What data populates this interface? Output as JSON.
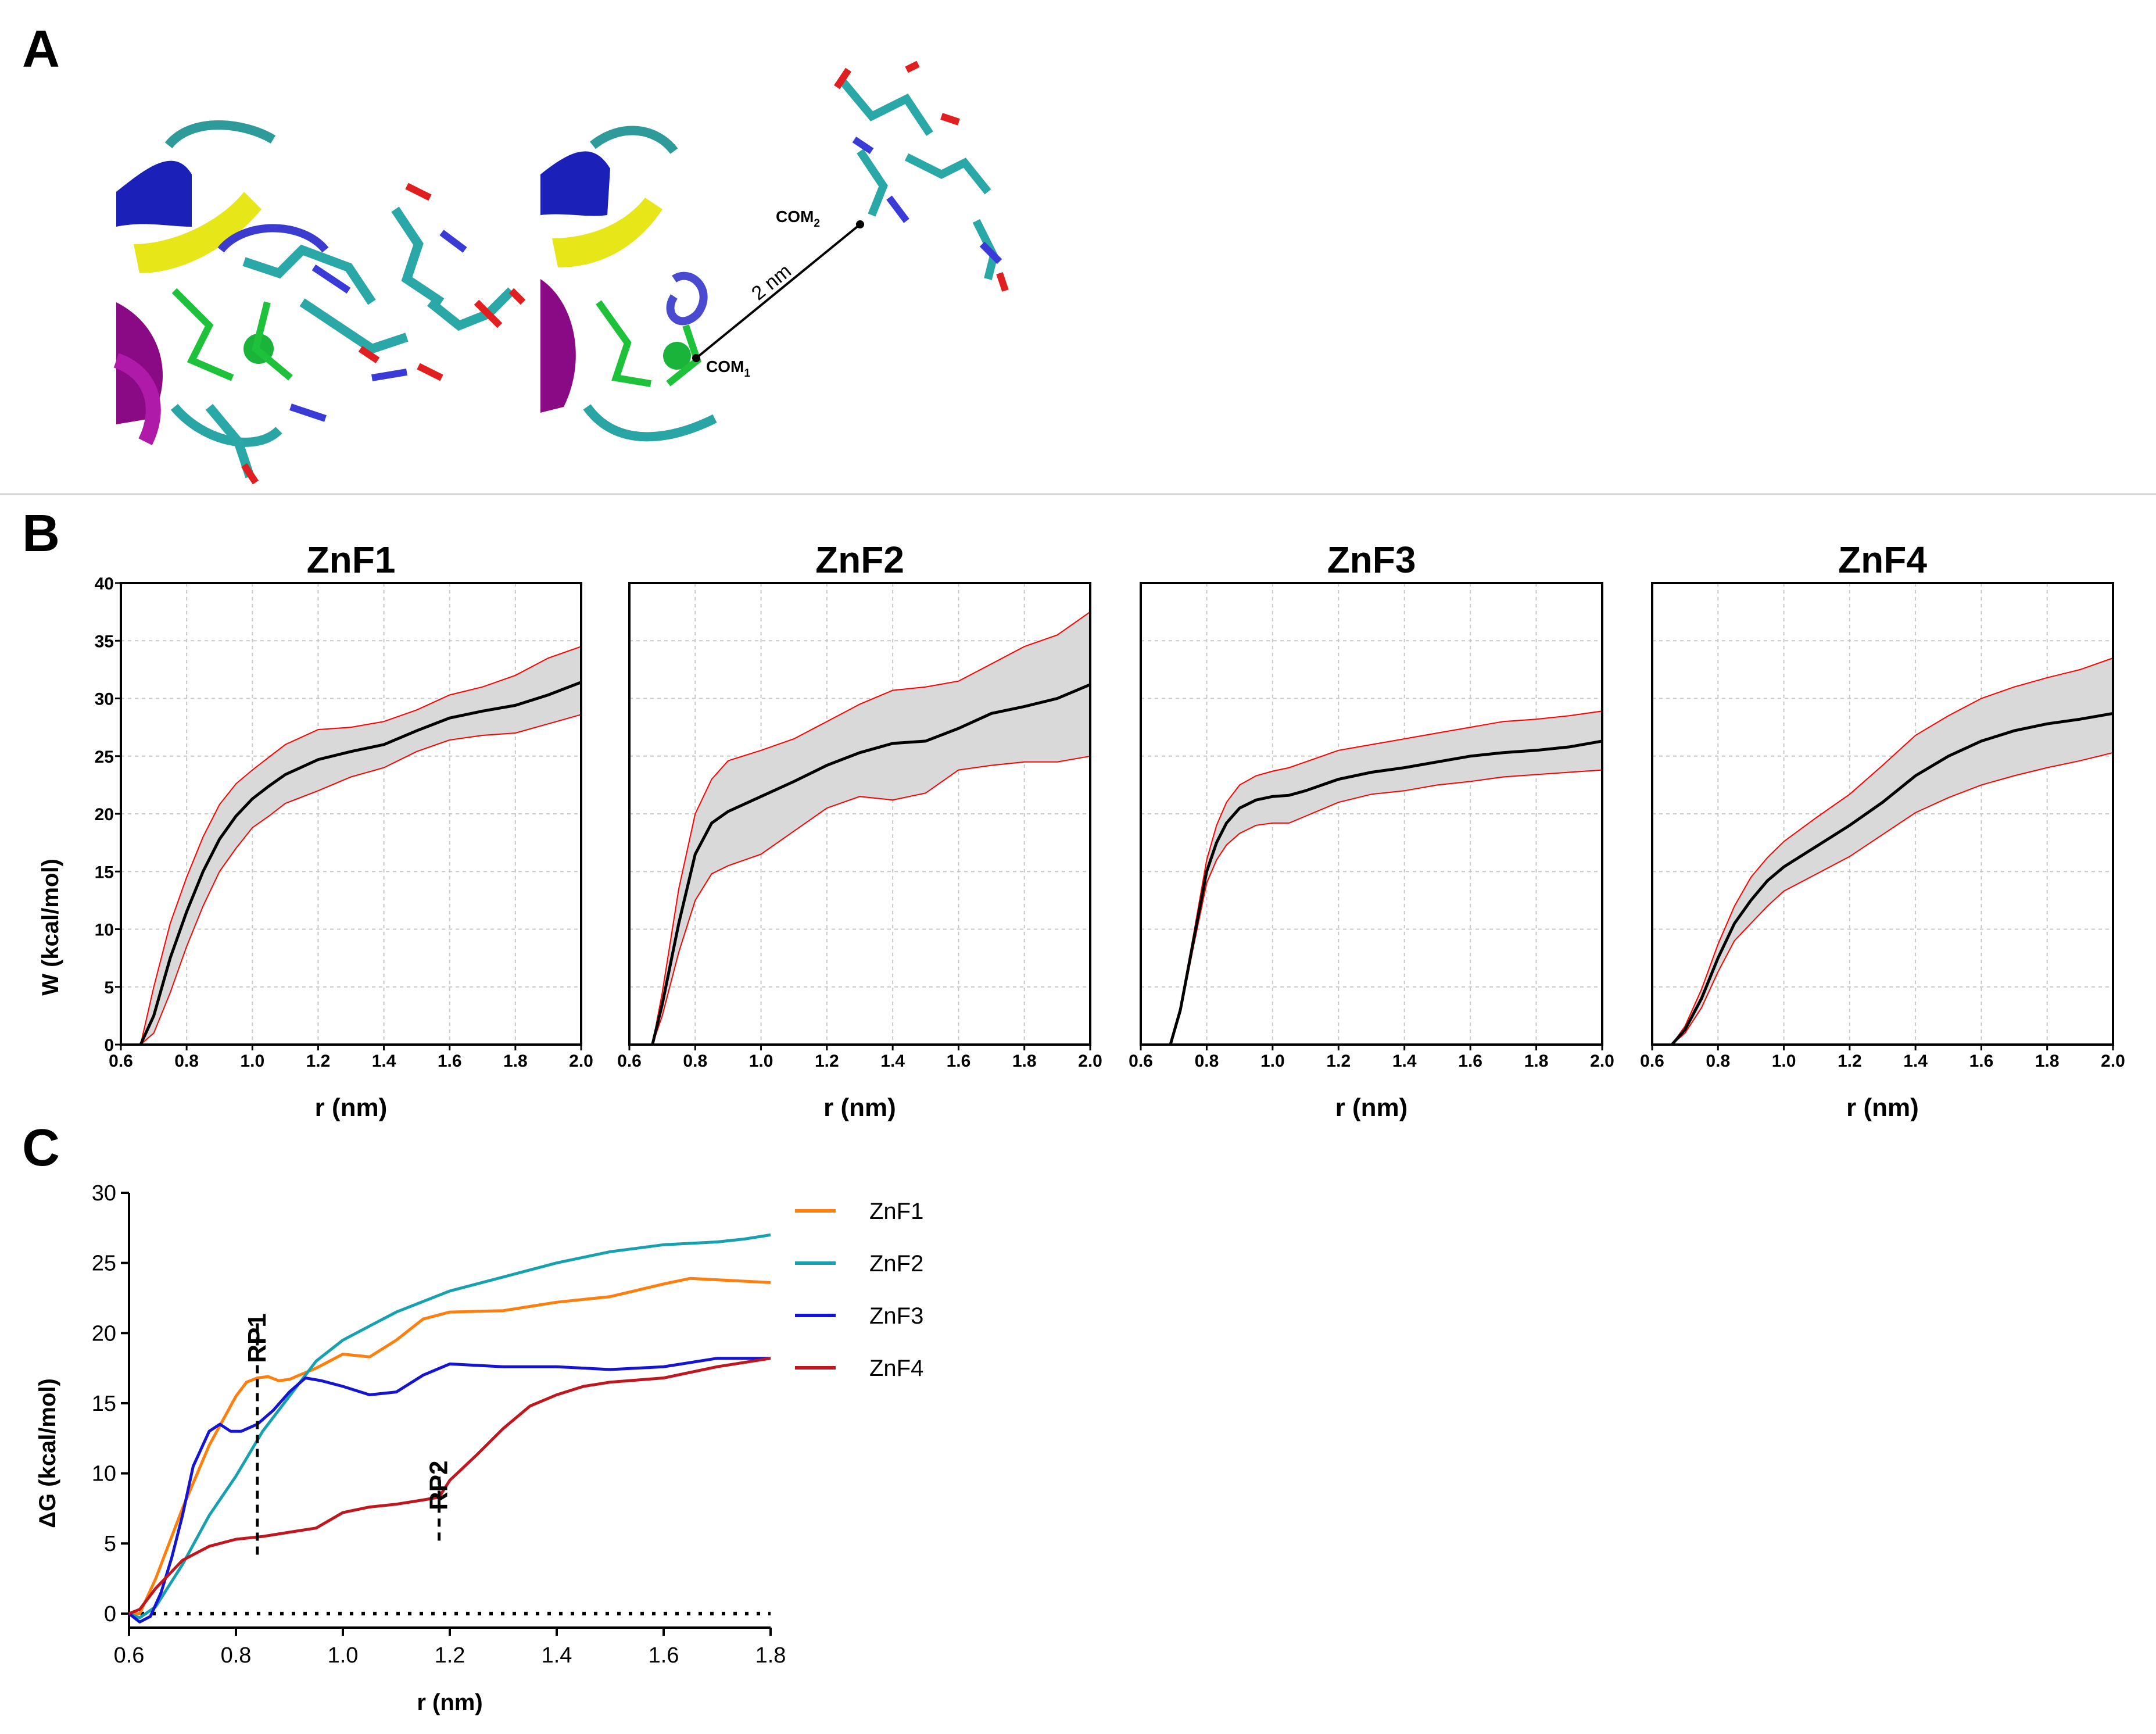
{
  "panels": {
    "a": {
      "letter": "A",
      "com1": "COM",
      "com1_sub": "1",
      "com2": "COM",
      "com2_sub": "2",
      "distance": "2 nm"
    },
    "b": {
      "letter": "B"
    },
    "c": {
      "letter": "C"
    }
  },
  "colors": {
    "band_fill": "#d9d9d9",
    "band_edge": "#ff0000",
    "mean_line": "#000000",
    "ZnF1": "#ff7f0e",
    "ZnF2": "#17a0b0",
    "ZnF3": "#1414d2",
    "ZnF4": "#c0171e"
  },
  "chart_data": [
    {
      "type": "area",
      "title": "ZnF1",
      "xlabel": "r (nm)",
      "ylabel": "W (kcal/mol)",
      "xlim": [
        0.6,
        2.0
      ],
      "ylim": [
        0,
        40
      ],
      "grid": true,
      "xticks": [
        "0.6",
        "0.8",
        "1.0",
        "1.2",
        "1.4",
        "1.6",
        "1.8",
        "2.0"
      ],
      "yticks": [
        "0",
        "5",
        "10",
        "15",
        "20",
        "25",
        "30",
        "35",
        "40"
      ],
      "x": [
        0.66,
        0.7,
        0.75,
        0.8,
        0.85,
        0.9,
        0.95,
        1.0,
        1.05,
        1.1,
        1.2,
        1.3,
        1.4,
        1.5,
        1.6,
        1.7,
        1.8,
        1.9,
        2.0
      ],
      "mean": [
        0,
        2.5,
        7.5,
        11.5,
        15,
        17.8,
        19.8,
        21.3,
        22.4,
        23.4,
        24.7,
        25.4,
        26.0,
        27.2,
        28.3,
        28.9,
        29.4,
        30.3,
        31.4
      ],
      "upper": [
        0,
        5.0,
        10.5,
        14.5,
        18,
        20.8,
        22.6,
        23.8,
        24.9,
        26.0,
        27.3,
        27.5,
        28.0,
        29.0,
        30.3,
        31.0,
        32.0,
        33.5,
        34.5
      ],
      "lower": [
        0,
        1.0,
        4.5,
        8.5,
        12,
        15.0,
        17.0,
        18.8,
        19.8,
        20.9,
        22.0,
        23.2,
        24.0,
        25.4,
        26.4,
        26.8,
        27.0,
        27.8,
        28.6
      ]
    },
    {
      "type": "area",
      "title": "ZnF2",
      "xlabel": "r (nm)",
      "ylabel": "",
      "xlim": [
        0.6,
        2.0
      ],
      "ylim": [
        0,
        40
      ],
      "grid": true,
      "xticks": [
        "0.6",
        "0.8",
        "1.0",
        "1.2",
        "1.4",
        "1.6",
        "1.8",
        "2.0"
      ],
      "yticks": [],
      "x": [
        0.67,
        0.7,
        0.75,
        0.8,
        0.85,
        0.9,
        1.0,
        1.1,
        1.2,
        1.3,
        1.4,
        1.5,
        1.6,
        1.7,
        1.8,
        1.9,
        2.0
      ],
      "mean": [
        0,
        3.5,
        10.5,
        16.5,
        19.2,
        20.2,
        21.5,
        22.8,
        24.2,
        25.3,
        26.1,
        26.3,
        27.4,
        28.7,
        29.3,
        30.0,
        31.2
      ],
      "upper": [
        0,
        4.5,
        13.5,
        20.0,
        23.0,
        24.6,
        25.5,
        26.5,
        28.0,
        29.5,
        30.7,
        31.0,
        31.5,
        33.0,
        34.5,
        35.5,
        37.5
      ],
      "lower": [
        0,
        2.5,
        8.0,
        12.5,
        14.8,
        15.5,
        16.5,
        18.5,
        20.5,
        21.5,
        21.2,
        21.8,
        23.8,
        24.2,
        24.5,
        24.5,
        25.0
      ]
    },
    {
      "type": "area",
      "title": "ZnF3",
      "xlabel": "r (nm)",
      "ylabel": "",
      "xlim": [
        0.6,
        2.0
      ],
      "ylim": [
        0,
        40
      ],
      "grid": true,
      "xticks": [
        "0.6",
        "0.8",
        "1.0",
        "1.2",
        "1.4",
        "1.6",
        "1.8",
        "2.0"
      ],
      "yticks": [],
      "x": [
        0.69,
        0.72,
        0.76,
        0.8,
        0.83,
        0.86,
        0.9,
        0.95,
        1.0,
        1.05,
        1.1,
        1.2,
        1.3,
        1.4,
        1.5,
        1.6,
        1.7,
        1.8,
        1.9,
        2.0
      ],
      "mean": [
        0,
        3.0,
        9.0,
        15.0,
        17.5,
        19.2,
        20.5,
        21.2,
        21.5,
        21.6,
        22.0,
        23.0,
        23.6,
        24.0,
        24.5,
        25.0,
        25.3,
        25.5,
        25.8,
        26.3
      ],
      "upper": [
        0,
        3.3,
        9.5,
        16.0,
        19.0,
        21.0,
        22.5,
        23.3,
        23.7,
        24.0,
        24.5,
        25.5,
        26.0,
        26.5,
        27.0,
        27.5,
        28.0,
        28.2,
        28.5,
        28.9
      ],
      "lower": [
        0,
        2.7,
        8.5,
        14.0,
        16.0,
        17.3,
        18.3,
        19.0,
        19.2,
        19.2,
        19.8,
        21.0,
        21.7,
        22.0,
        22.5,
        22.8,
        23.2,
        23.4,
        23.6,
        23.8
      ]
    },
    {
      "type": "area",
      "title": "ZnF4",
      "xlabel": "r (nm)",
      "ylabel": "",
      "xlim": [
        0.6,
        2.0
      ],
      "ylim": [
        0,
        40
      ],
      "grid": true,
      "xticks": [
        "0.6",
        "0.8",
        "1.0",
        "1.2",
        "1.4",
        "1.6",
        "1.8",
        "2.0"
      ],
      "yticks": [],
      "x": [
        0.66,
        0.7,
        0.75,
        0.8,
        0.85,
        0.9,
        0.95,
        1.0,
        1.1,
        1.2,
        1.3,
        1.4,
        1.5,
        1.6,
        1.7,
        1.8,
        1.9,
        2.0
      ],
      "mean": [
        0,
        1.3,
        4.0,
        7.5,
        10.5,
        12.5,
        14.2,
        15.4,
        17.2,
        19.0,
        21.0,
        23.3,
        25.0,
        26.3,
        27.2,
        27.8,
        28.2,
        28.7
      ],
      "upper": [
        0,
        1.6,
        4.8,
        8.7,
        12.0,
        14.5,
        16.2,
        17.6,
        19.7,
        21.7,
        24.2,
        26.8,
        28.5,
        30.0,
        31.0,
        31.8,
        32.5,
        33.5
      ],
      "lower": [
        0,
        1.0,
        3.2,
        6.3,
        9.0,
        10.5,
        12.0,
        13.3,
        14.8,
        16.3,
        18.2,
        20.1,
        21.4,
        22.5,
        23.3,
        24.0,
        24.6,
        25.3
      ]
    },
    {
      "type": "line",
      "title": "",
      "xlabel": "r (nm)",
      "ylabel": "ΔG (kcal/mol)",
      "xlim": [
        0.6,
        1.8
      ],
      "ylim": [
        -1,
        30
      ],
      "grid": false,
      "xticks": [
        "0.6",
        "0.8",
        "1.0",
        "1.2",
        "1.4",
        "1.6",
        "1.8"
      ],
      "yticks": [
        "0",
        "5",
        "10",
        "15",
        "20",
        "25",
        "30"
      ],
      "series": [
        {
          "name": "ZnF1",
          "x": [
            0.6,
            0.62,
            0.65,
            0.7,
            0.75,
            0.8,
            0.82,
            0.84,
            0.86,
            0.88,
            0.9,
            0.95,
            1.0,
            1.05,
            1.1,
            1.15,
            1.2,
            1.3,
            1.4,
            1.5,
            1.6,
            1.65,
            1.7,
            1.8
          ],
          "y": [
            0,
            0,
            2.5,
            7.5,
            12,
            15.5,
            16.5,
            16.8,
            16.9,
            16.6,
            16.7,
            17.5,
            18.5,
            18.3,
            19.5,
            21,
            21.5,
            21.6,
            22.2,
            22.6,
            23.5,
            23.9,
            23.8,
            23.6
          ]
        },
        {
          "name": "ZnF2",
          "x": [
            0.6,
            0.62,
            0.65,
            0.7,
            0.75,
            0.8,
            0.85,
            0.9,
            0.95,
            1.0,
            1.05,
            1.1,
            1.2,
            1.3,
            1.4,
            1.5,
            1.6,
            1.7,
            1.75,
            1.8
          ],
          "y": [
            0,
            -0.3,
            0.5,
            3.5,
            7,
            9.8,
            13,
            15.5,
            18,
            19.5,
            20.5,
            21.5,
            23,
            24,
            25,
            25.8,
            26.3,
            26.5,
            26.7,
            27
          ]
        },
        {
          "name": "ZnF3",
          "x": [
            0.6,
            0.62,
            0.64,
            0.66,
            0.68,
            0.7,
            0.72,
            0.75,
            0.77,
            0.79,
            0.81,
            0.84,
            0.87,
            0.9,
            0.93,
            0.96,
            1.0,
            1.05,
            1.1,
            1.15,
            1.2,
            1.3,
            1.4,
            1.5,
            1.6,
            1.7,
            1.8
          ],
          "y": [
            0,
            -0.6,
            -0.2,
            1.5,
            4,
            7,
            10.5,
            13,
            13.5,
            13,
            13,
            13.5,
            14.5,
            15.8,
            16.8,
            16.6,
            16.2,
            15.6,
            15.8,
            17,
            17.8,
            17.6,
            17.6,
            17.4,
            17.6,
            18.2,
            18.2
          ]
        },
        {
          "name": "ZnF4",
          "x": [
            0.6,
            0.62,
            0.65,
            0.7,
            0.75,
            0.8,
            0.85,
            0.9,
            0.95,
            1.0,
            1.05,
            1.1,
            1.15,
            1.18,
            1.2,
            1.25,
            1.3,
            1.35,
            1.4,
            1.45,
            1.5,
            1.6,
            1.7,
            1.8
          ],
          "y": [
            0,
            0.3,
            1.8,
            3.8,
            4.8,
            5.3,
            5.5,
            5.8,
            6.1,
            7.2,
            7.6,
            7.8,
            8.1,
            8.3,
            9.5,
            11.3,
            13.2,
            14.8,
            15.6,
            16.2,
            16.5,
            16.8,
            17.6,
            18.2
          ]
        }
      ],
      "annotations": [
        {
          "label": "RP1",
          "x": 0.84,
          "y_from": 4.2,
          "y_to": 21
        },
        {
          "label": "RP2",
          "x": 1.18,
          "y_from": 5.2,
          "y_to": 10.5
        }
      ],
      "zero_line": true
    }
  ]
}
